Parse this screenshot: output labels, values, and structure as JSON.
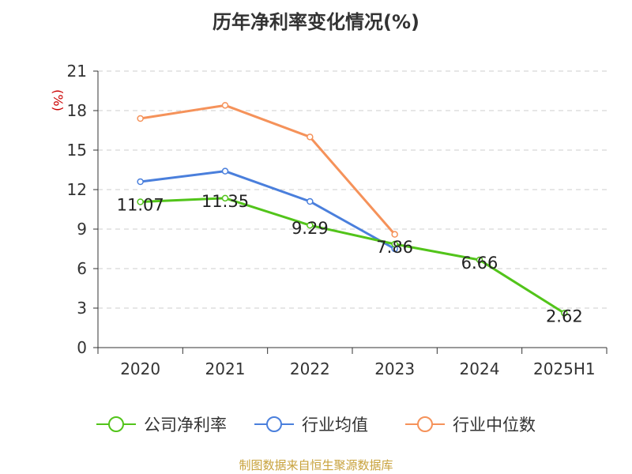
{
  "chart_data": {
    "type": "line",
    "title": "历年净利率变化情况(%)",
    "ylabel": "(%)",
    "xlabel": "",
    "categories": [
      "2020",
      "2021",
      "2022",
      "2023",
      "2024",
      "2025H1"
    ],
    "ylim": [
      0,
      21
    ],
    "yticks": [
      0,
      3,
      6,
      9,
      12,
      15,
      18,
      21
    ],
    "grid": "horizontal dashed",
    "legend_position": "bottom",
    "series": [
      {
        "name": "公司净利率",
        "color": "#52c41a",
        "values": [
          11.07,
          11.35,
          9.29,
          7.86,
          6.66,
          2.62
        ],
        "show_labels": true
      },
      {
        "name": "行业均值",
        "color": "#4a7fdc",
        "values": [
          12.6,
          13.4,
          11.1,
          7.5,
          null,
          null
        ],
        "show_labels": false
      },
      {
        "name": "行业中位数",
        "color": "#f5925a",
        "values": [
          17.4,
          18.4,
          16.0,
          8.6,
          null,
          null
        ],
        "show_labels": false
      }
    ]
  },
  "source": "制图数据来自恒生聚源数据库"
}
